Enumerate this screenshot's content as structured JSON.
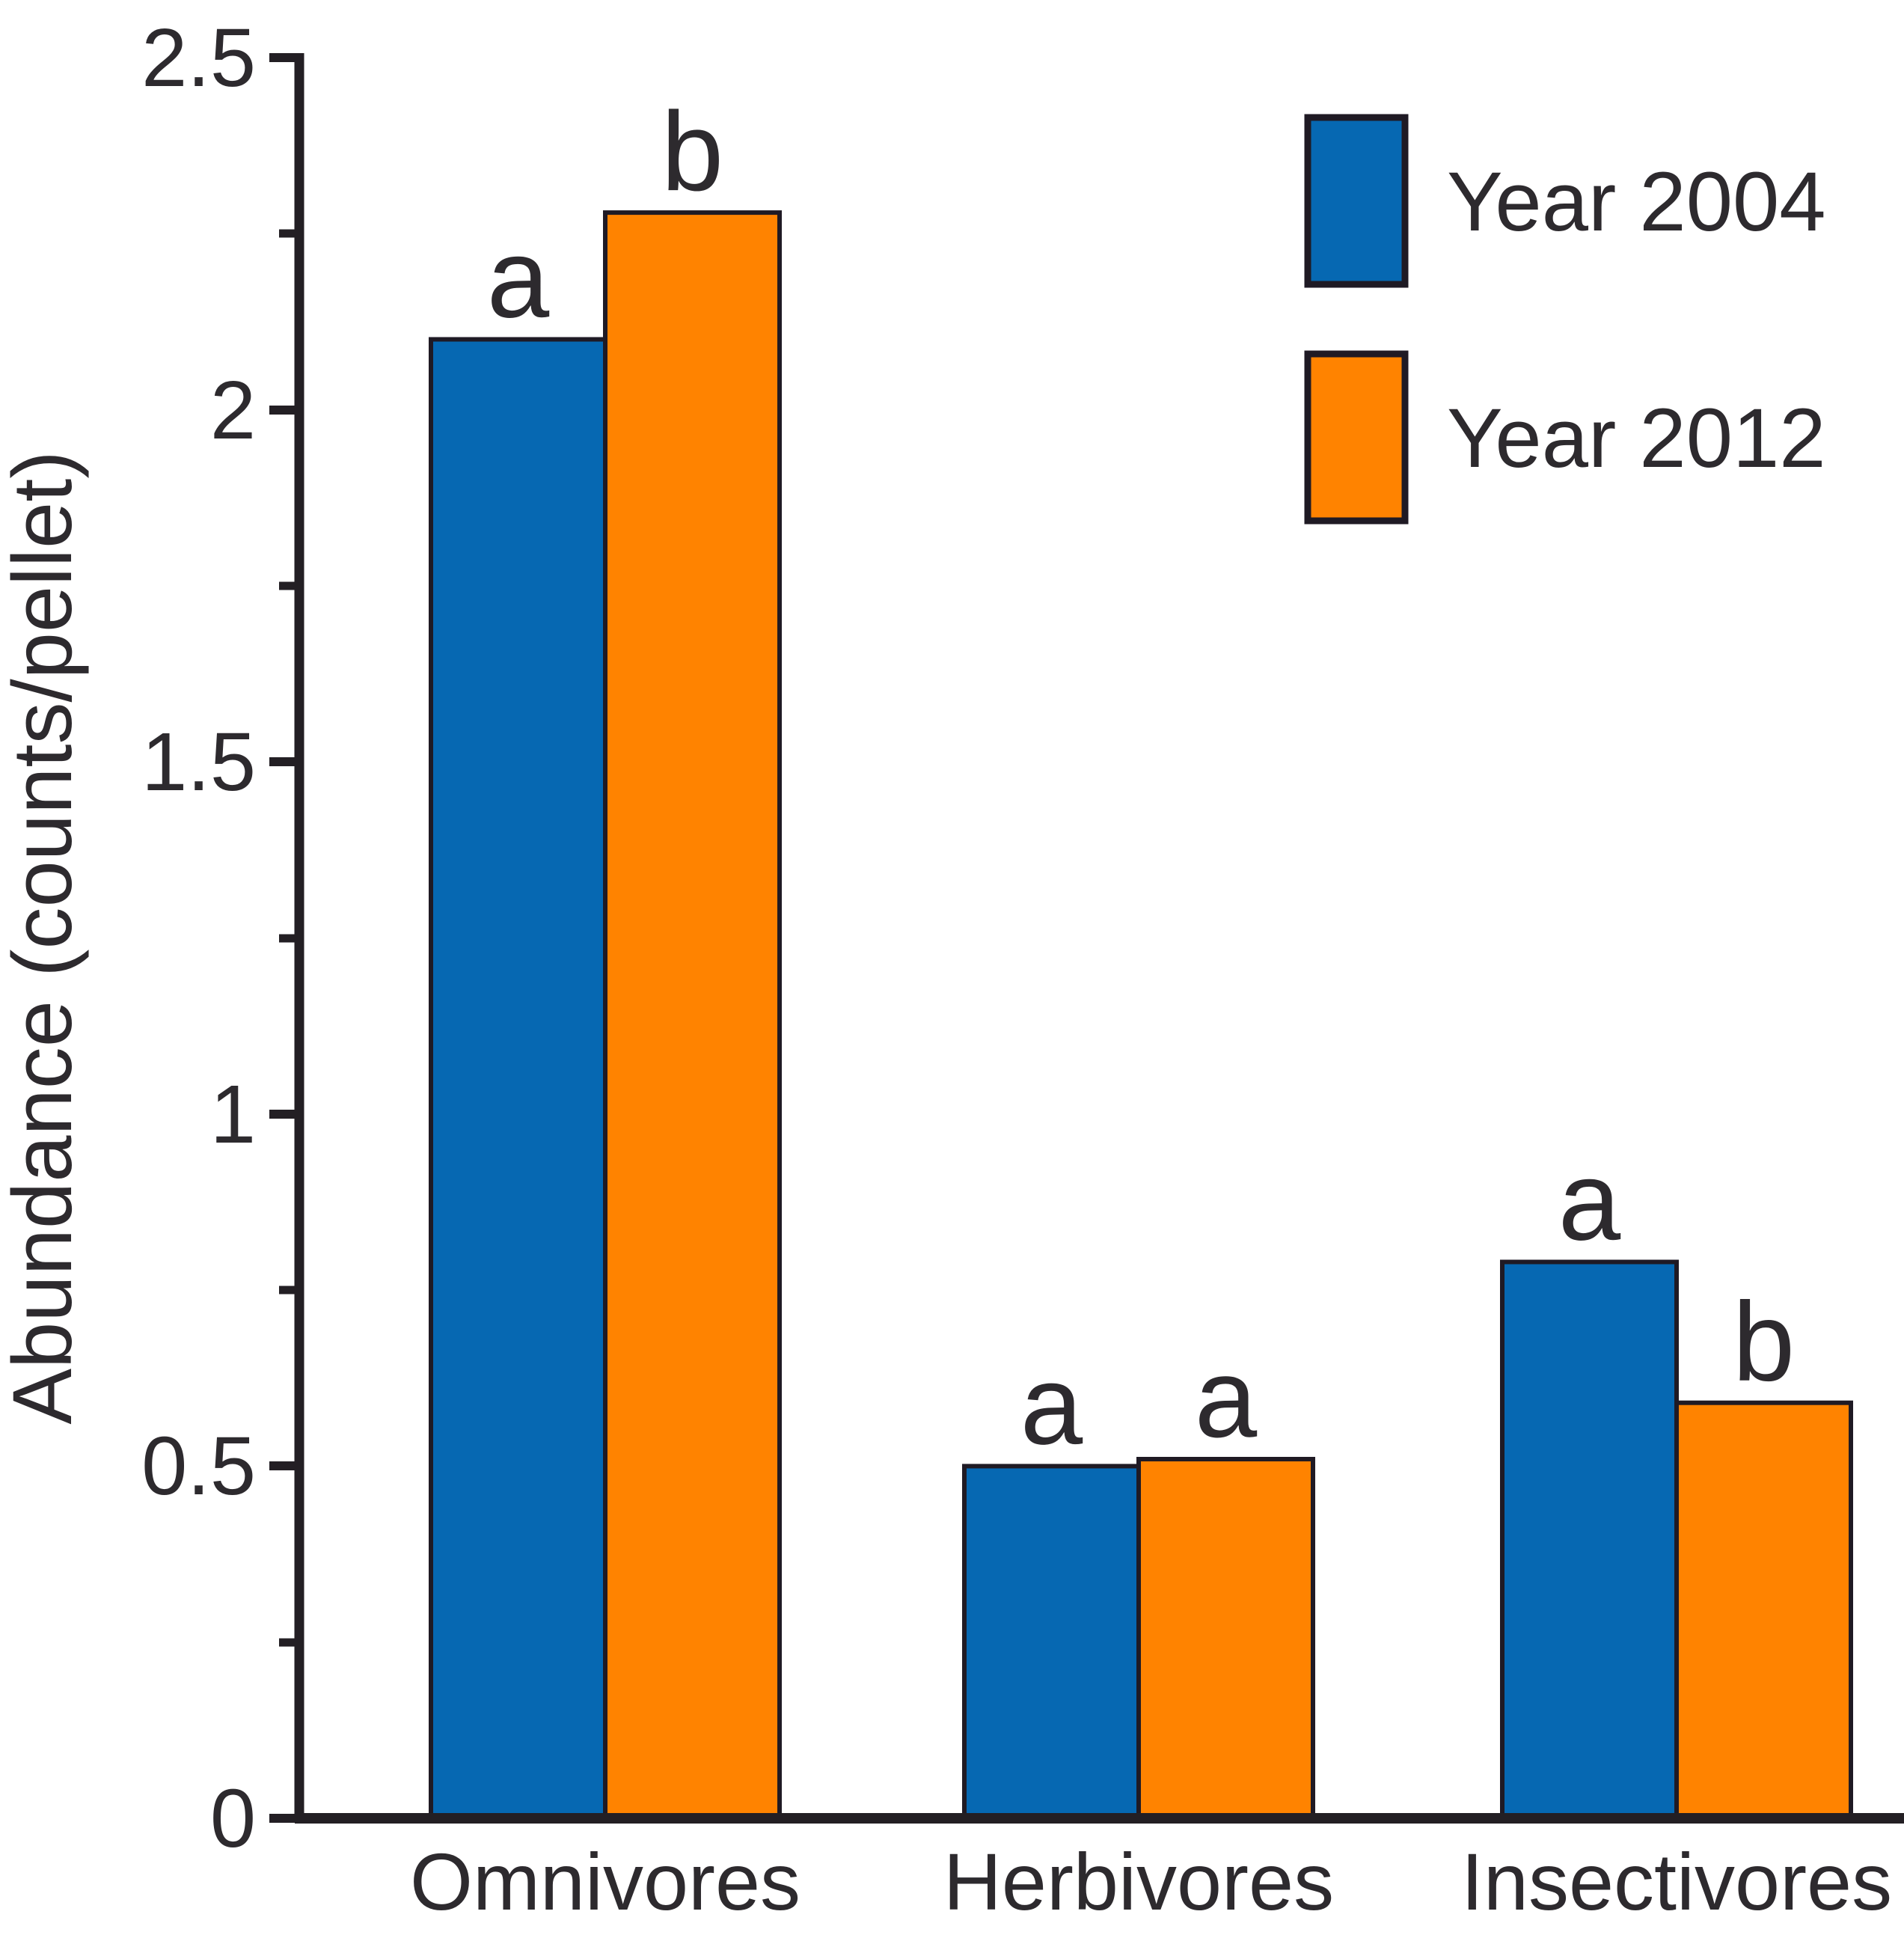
{
  "chart_data": {
    "type": "bar",
    "title": "",
    "ylabel": "Abundance (counts/pellet)",
    "xlabel": "",
    "categories": [
      "Omnivores",
      "Herbivores",
      "Insectivores"
    ],
    "series": [
      {
        "name": "Year 2004",
        "color": "#0668b2",
        "values": [
          2.1,
          0.5,
          0.79
        ],
        "sig_letters": [
          "a",
          "a",
          "a"
        ]
      },
      {
        "name": "Year 2012",
        "color": "#ff8300",
        "values": [
          2.28,
          0.51,
          0.59
        ],
        "sig_letters": [
          "b",
          "a",
          "b"
        ]
      }
    ],
    "ylim": [
      0,
      2.5
    ],
    "ytick_labels": [
      "0",
      "0.5",
      "1",
      "1.5",
      "2",
      "2.5"
    ],
    "ytick_major_step": 0.5,
    "ytick_minor_step": 0.25,
    "grid": false,
    "legend_position": "top-right",
    "axis_color": "#231f24"
  }
}
